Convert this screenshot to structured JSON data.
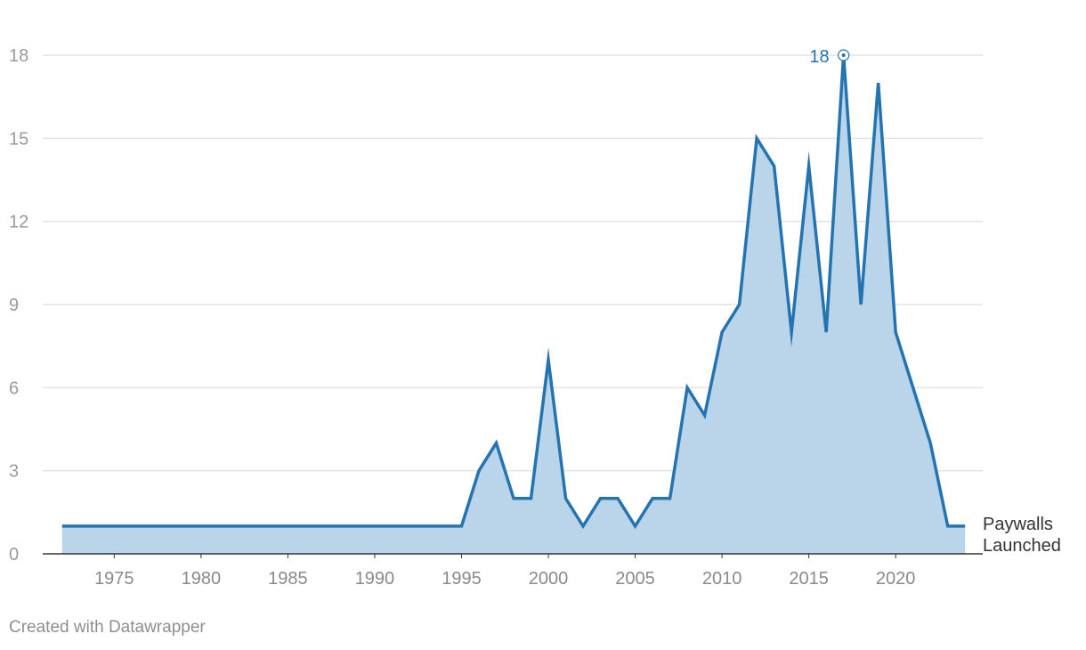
{
  "chart_data": {
    "type": "area",
    "title": "",
    "xlabel": "",
    "ylabel": "",
    "xlim": [
      1972,
      2024
    ],
    "ylim": [
      0,
      18
    ],
    "y_ticks": [
      0,
      3,
      6,
      9,
      12,
      15,
      18
    ],
    "x_ticks": [
      1975,
      1980,
      1985,
      1990,
      1995,
      2000,
      2005,
      2010,
      2015,
      2020
    ],
    "grid": "horizontal",
    "series_label_lines": [
      "Paywalls",
      "Launched"
    ],
    "x": [
      1972,
      1973,
      1974,
      1975,
      1976,
      1977,
      1978,
      1979,
      1980,
      1981,
      1982,
      1983,
      1984,
      1985,
      1986,
      1987,
      1988,
      1989,
      1990,
      1991,
      1992,
      1993,
      1994,
      1995,
      1996,
      1997,
      1998,
      1999,
      2000,
      2001,
      2002,
      2003,
      2004,
      2005,
      2006,
      2007,
      2008,
      2009,
      2010,
      2011,
      2012,
      2013,
      2014,
      2015,
      2016,
      2017,
      2018,
      2019,
      2020,
      2021,
      2022,
      2023,
      2024
    ],
    "series": [
      {
        "color": "#2374b1",
        "fill": "#bad5ea",
        "values": [
          1,
          1,
          1,
          1,
          1,
          1,
          1,
          1,
          1,
          1,
          1,
          1,
          1,
          1,
          1,
          1,
          1,
          1,
          1,
          1,
          1,
          1,
          1,
          1,
          3,
          4,
          2,
          2,
          7,
          2,
          1,
          2,
          2,
          1,
          2,
          2,
          6,
          5,
          8,
          9,
          15,
          14,
          8,
          14,
          8,
          18,
          9,
          17,
          8,
          6,
          4,
          1,
          1
        ]
      }
    ],
    "annotations": [
      {
        "x": 2017,
        "y": 18,
        "text": "18",
        "color": "#2374b1"
      }
    ]
  },
  "footer": {
    "credit": "Created with Datawrapper"
  }
}
